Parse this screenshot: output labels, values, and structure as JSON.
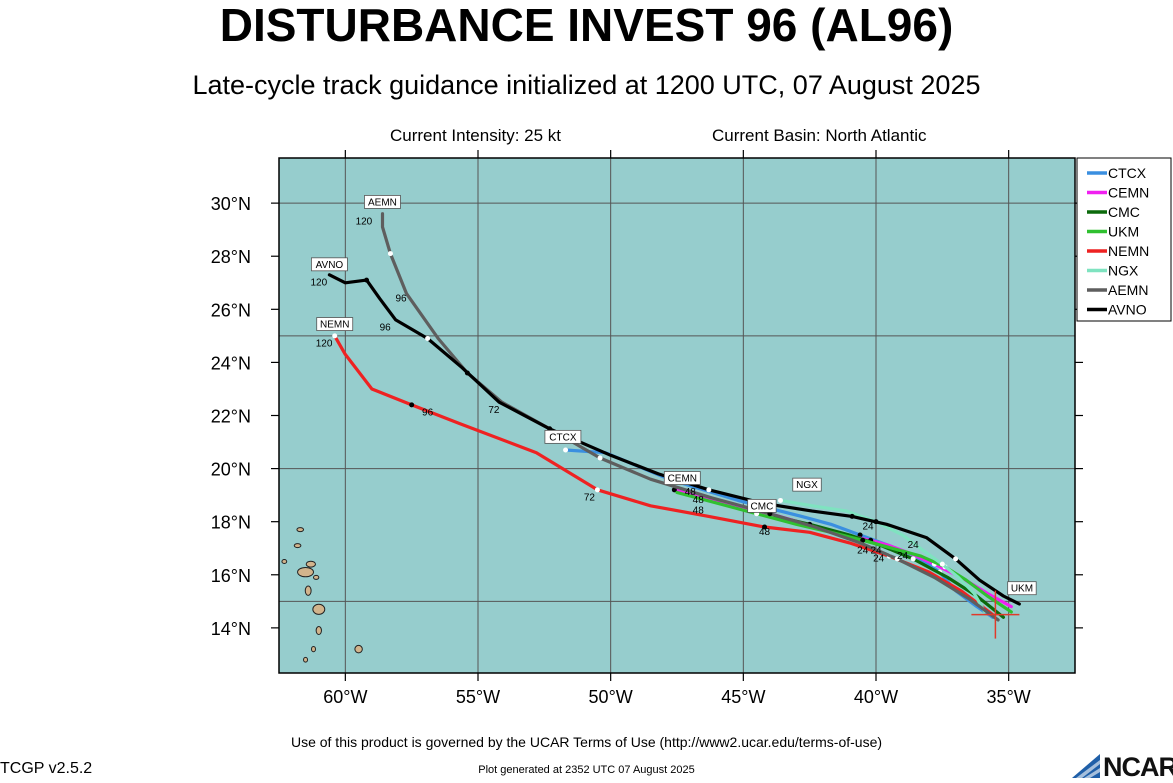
{
  "header": {
    "title": "DISTURBANCE INVEST 96 (AL96)",
    "subtitle": "Late-cycle track guidance initialized at 1200 UTC, 07 August 2025",
    "intensity": "Current Intensity: 25 kt",
    "basin": "Current Basin: North Atlantic"
  },
  "footer": {
    "terms": "Use of this product is governed by the UCAR Terms of Use (http://www2.ucar.edu/terms-of-use)",
    "version": "TCGP v2.5.2",
    "generated": "Plot generated at 2352 UTC   07 August 2025",
    "logo_text": "NCAR"
  },
  "colors": {
    "ocean": "#96cdcd",
    "land": "#d2b48c",
    "grid": "#555555",
    "current_position": "#e03a2a"
  },
  "chart_data": {
    "type": "line",
    "xlabel": "",
    "ylabel": "",
    "xlim": [
      -62.5,
      -32.5
    ],
    "ylim": [
      12.3,
      31.7
    ],
    "x_ticks": [
      -60,
      -55,
      -50,
      -45,
      -40,
      -35
    ],
    "x_tick_labels": [
      "60°W",
      "55°W",
      "50°W",
      "45°W",
      "40°W",
      "35°W"
    ],
    "y_ticks": [
      14,
      16,
      18,
      20,
      22,
      24,
      26,
      28,
      30
    ],
    "y_tick_labels": [
      "14°N",
      "16°N",
      "18°N",
      "20°N",
      "22°N",
      "24°N",
      "26°N",
      "28°N",
      "30°N"
    ],
    "grid": true,
    "legend_position": "top-right",
    "current_position": {
      "lon": -35.5,
      "lat": 14.5
    },
    "series": [
      {
        "name": "CTCX",
        "color": "#3a8fe0",
        "lon": [
          -35.6,
          -36.2,
          -37.0,
          -37.6,
          -38.5,
          -39.5,
          -40.6,
          -41.7,
          -42.8,
          -44.0,
          -45.2,
          -46.5,
          -47.8,
          -49.0,
          -50.2,
          -51.7
        ],
        "lat": [
          14.4,
          14.8,
          15.4,
          16.1,
          16.7,
          17.1,
          17.5,
          17.9,
          18.2,
          18.5,
          18.8,
          19.2,
          19.6,
          20.1,
          20.6,
          20.7
        ],
        "label": "CTCX",
        "label_lon": -51.8,
        "label_lat": 20.95,
        "hours": []
      },
      {
        "name": "CEMN",
        "color": "#f020f0",
        "lon": [
          -34.9,
          -35.8,
          -36.8,
          -37.8,
          -38.7,
          -39.5,
          -40.2,
          -41.2,
          -42.6,
          -44.0,
          -45.5,
          -46.6,
          -47.6
        ],
        "lat": [
          14.8,
          15.3,
          15.9,
          16.4,
          16.8,
          17.1,
          17.3,
          17.5,
          17.9,
          18.3,
          18.6,
          18.9,
          19.2
        ],
        "label": "CEMN",
        "label_lon": -47.3,
        "label_lat": 19.4,
        "hours": []
      },
      {
        "name": "CMC",
        "color": "#0b6a0b",
        "lon": [
          -35.2,
          -36.2,
          -37.3,
          -38.6,
          -39.8,
          -41.0,
          -42.5,
          -43.8
        ],
        "lat": [
          14.4,
          15.2,
          15.9,
          16.6,
          17.1,
          17.5,
          17.9,
          18.2
        ],
        "label": "CMC",
        "label_lon": -44.3,
        "label_lat": 18.35,
        "hours": []
      },
      {
        "name": "UKM",
        "color": "#30c030",
        "lon": [
          -34.9,
          -35.8,
          -36.6,
          -37.4,
          -38.3,
          -39.4,
          -40.5,
          -41.7,
          -43.0,
          -44.5,
          -46.0,
          -47.5
        ],
        "lat": [
          14.6,
          15.2,
          15.8,
          16.3,
          16.7,
          17.0,
          17.3,
          17.6,
          17.9,
          18.3,
          18.7,
          19.1
        ],
        "label": "UKM",
        "label_lon": -34.5,
        "label_lat": 15.25,
        "hours": []
      },
      {
        "name": "NEMN",
        "color": "#ee2222",
        "lon": [
          -35.6,
          -36.8,
          -38.0,
          -39.5,
          -41.0,
          -42.5,
          -44.2,
          -46.3,
          -48.5,
          -50.5,
          -52.8,
          -55.7,
          -57.5,
          -59.0,
          -60.0,
          -60.4
        ],
        "lat": [
          14.5,
          15.4,
          16.1,
          16.7,
          17.2,
          17.6,
          17.8,
          18.2,
          18.6,
          19.2,
          20.6,
          21.7,
          22.4,
          23.0,
          24.3,
          25.0
        ],
        "label": "NEMN",
        "label_lon": -60.4,
        "label_lat": 25.2,
        "hours": [
          "24",
          "48",
          "72",
          "96",
          "120"
        ]
      },
      {
        "name": "NGX",
        "color": "#7fe3c0",
        "lon": [
          -35.9,
          -36.3,
          -36.9,
          -37.5,
          -38.2,
          -39.0,
          -40.0,
          -41.1,
          -42.4,
          -43.6
        ],
        "lat": [
          14.6,
          15.3,
          15.9,
          16.4,
          16.9,
          17.5,
          18.0,
          18.4,
          18.6,
          18.8
        ],
        "label": "NGX",
        "label_lon": -42.6,
        "label_lat": 19.15,
        "hours": []
      },
      {
        "name": "AEMN",
        "color": "#5e5e5e",
        "lon": [
          -35.4,
          -36.5,
          -37.8,
          -39.2,
          -40.6,
          -42.3,
          -44.0,
          -46.2,
          -48.5,
          -50.4,
          -52.3,
          -54.1,
          -55.4,
          -56.5,
          -57.7,
          -58.3,
          -58.6,
          -58.6
        ],
        "lat": [
          14.3,
          15.1,
          15.9,
          16.6,
          17.2,
          17.8,
          18.3,
          18.9,
          19.6,
          20.4,
          21.5,
          22.5,
          23.6,
          24.9,
          26.6,
          28.1,
          29.1,
          29.6
        ],
        "label": "AEMN",
        "label_lon": -58.6,
        "label_lat": 29.8,
        "hours": [
          "96",
          "120"
        ]
      },
      {
        "name": "AVNO",
        "color": "#000000",
        "lon": [
          -34.6,
          -35.2,
          -36.1,
          -37.0,
          -38.1,
          -39.6,
          -40.9,
          -42.4,
          -44.3,
          -46.3,
          -48.2,
          -50.0,
          -52.3,
          -54.2,
          -55.6,
          -56.9,
          -58.1,
          -58.7,
          -59.2,
          -60.0,
          -60.6
        ],
        "lat": [
          14.9,
          15.2,
          15.8,
          16.6,
          17.4,
          17.9,
          18.2,
          18.4,
          18.7,
          19.2,
          19.8,
          20.5,
          21.5,
          22.5,
          23.8,
          24.9,
          25.6,
          26.4,
          27.1,
          27.0,
          27.3
        ],
        "label": "AVNO",
        "label_lon": -60.6,
        "label_lat": 27.45,
        "hours": [
          "96",
          "120"
        ]
      }
    ],
    "hour_labels": [
      {
        "text": "120",
        "lon": -59.3,
        "lat": 29.2
      },
      {
        "text": "96",
        "lon": -57.9,
        "lat": 26.3
      },
      {
        "text": "120",
        "lon": -61.0,
        "lat": 26.9
      },
      {
        "text": "96",
        "lon": -58.5,
        "lat": 25.2
      },
      {
        "text": "120",
        "lon": -60.8,
        "lat": 24.6
      },
      {
        "text": "96",
        "lon": -56.9,
        "lat": 22.0
      },
      {
        "text": "72",
        "lon": -54.4,
        "lat": 22.1
      },
      {
        "text": "72",
        "lon": -50.8,
        "lat": 18.8
      },
      {
        "text": "48",
        "lon": -47.0,
        "lat": 19.0
      },
      {
        "text": "48",
        "lon": -46.7,
        "lat": 18.7
      },
      {
        "text": "48",
        "lon": -46.7,
        "lat": 18.3
      },
      {
        "text": "48",
        "lon": -44.2,
        "lat": 17.5
      },
      {
        "text": "24",
        "lon": -40.3,
        "lat": 17.7
      },
      {
        "text": "24",
        "lon": -40.5,
        "lat": 16.8
      },
      {
        "text": "24",
        "lon": -40.0,
        "lat": 16.8
      },
      {
        "text": "24",
        "lon": -39.9,
        "lat": 16.5
      },
      {
        "text": "24",
        "lon": -39.0,
        "lat": 16.6
      },
      {
        "text": "24",
        "lon": -38.6,
        "lat": 17.0
      }
    ],
    "islands": [
      {
        "lon": -61.7,
        "lat": 17.7,
        "w": 0.25,
        "h": 0.15
      },
      {
        "lon": -61.8,
        "lat": 17.1,
        "w": 0.25,
        "h": 0.15
      },
      {
        "lon": -62.3,
        "lat": 16.5,
        "w": 0.18,
        "h": 0.12
      },
      {
        "lon": -61.5,
        "lat": 16.1,
        "w": 0.6,
        "h": 0.35
      },
      {
        "lon": -61.3,
        "lat": 16.4,
        "w": 0.35,
        "h": 0.22
      },
      {
        "lon": -61.1,
        "lat": 15.9,
        "w": 0.2,
        "h": 0.14
      },
      {
        "lon": -61.4,
        "lat": 15.4,
        "w": 0.22,
        "h": 0.35
      },
      {
        "lon": -61.0,
        "lat": 14.7,
        "w": 0.45,
        "h": 0.38
      },
      {
        "lon": -61.0,
        "lat": 13.9,
        "w": 0.2,
        "h": 0.3
      },
      {
        "lon": -61.2,
        "lat": 13.2,
        "w": 0.12,
        "h": 0.2
      },
      {
        "lon": -61.5,
        "lat": 12.8,
        "w": 0.12,
        "h": 0.18
      },
      {
        "lon": -59.5,
        "lat": 13.2,
        "w": 0.28,
        "h": 0.28
      }
    ]
  }
}
